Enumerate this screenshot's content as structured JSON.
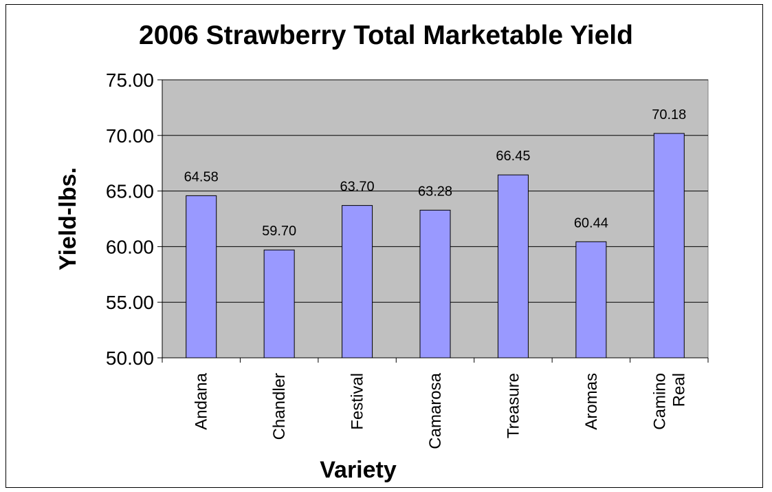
{
  "chart_data": {
    "type": "bar",
    "title": "2006 Strawberry Total Marketable Yield",
    "xlabel": "Variety",
    "ylabel": "Yield-lbs.",
    "categories": [
      "Andana",
      "Chandler",
      "Festival",
      "Camarosa",
      "Treasure",
      "Aromas",
      "Camino Real"
    ],
    "values": [
      64.58,
      59.7,
      63.7,
      63.28,
      66.45,
      60.44,
      70.18
    ],
    "value_labels": [
      "64.58",
      "59.70",
      "63.70",
      "63.28",
      "66.45",
      "60.44",
      "70.18"
    ],
    "ylim": [
      50,
      75
    ],
    "yticks": [
      "50.00",
      "55.00",
      "60.00",
      "65.00",
      "70.00",
      "75.00"
    ],
    "grid": true,
    "colors": {
      "bar_fill": "#9999ff",
      "bar_stroke": "#000000",
      "plot_background": "#c0c0c0",
      "gridline": "#000000"
    }
  }
}
